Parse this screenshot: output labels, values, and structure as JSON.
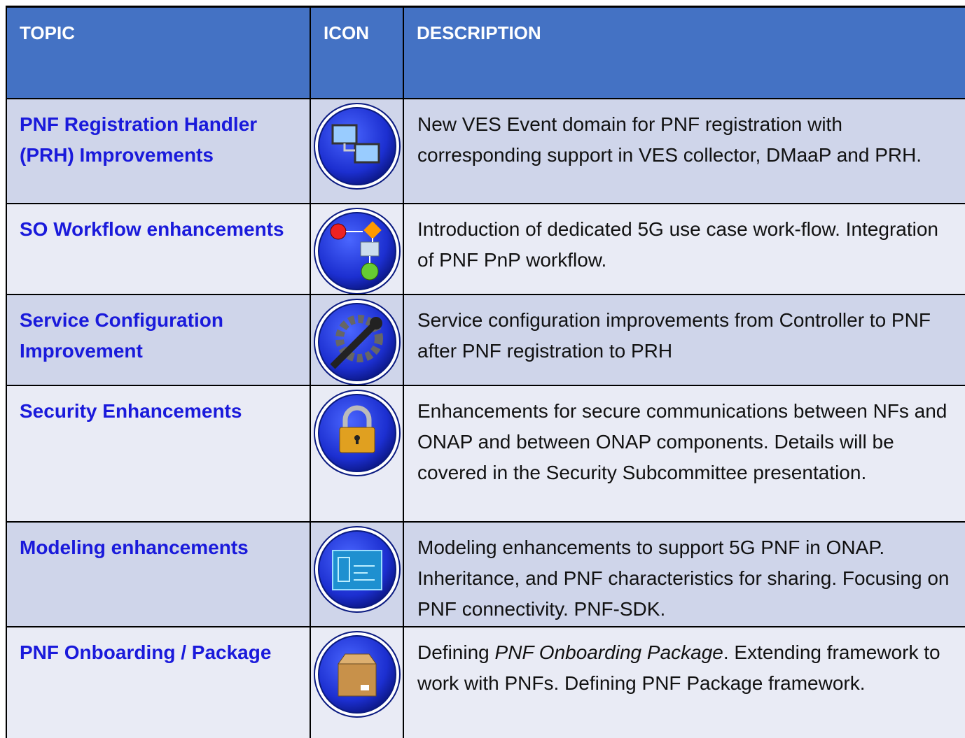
{
  "header": {
    "topic": "TOPIC",
    "icon": "ICON",
    "description": "DESCRIPTION"
  },
  "rows": [
    {
      "topic": "PNF Registration Handler (PRH) Improvements",
      "description": "New VES Event domain for PNF registration with corresponding support in VES collector, DMaaP and PRH."
    },
    {
      "topic": "SO Workflow enhancements",
      "description": "Introduction of dedicated 5G use case work-flow. Integration of PNF PnP workflow."
    },
    {
      "topic": "Service Configuration Improvement",
      "description": "Service configuration improvements from Controller to PNF after PNF registration to PRH"
    },
    {
      "topic": "Security Enhancements",
      "description": "Enhancements for secure communications between NFs and ONAP and between ONAP components. Details will be covered in the Security Subcommittee presentation."
    },
    {
      "topic": "Modeling enhancements",
      "description": "Modeling enhancements to support 5G PNF in ONAP. Inheritance, and PNF characteristics for sharing. Focusing on PNF connectivity. PNF-SDK."
    },
    {
      "topic": "PNF Onboarding / Package",
      "description": {
        "before": "Defining ",
        "emphasis": "PNF Onboarding Package",
        "after": ". Extending framework to work with PNFs. Defining PNF Package framework."
      }
    }
  ]
}
